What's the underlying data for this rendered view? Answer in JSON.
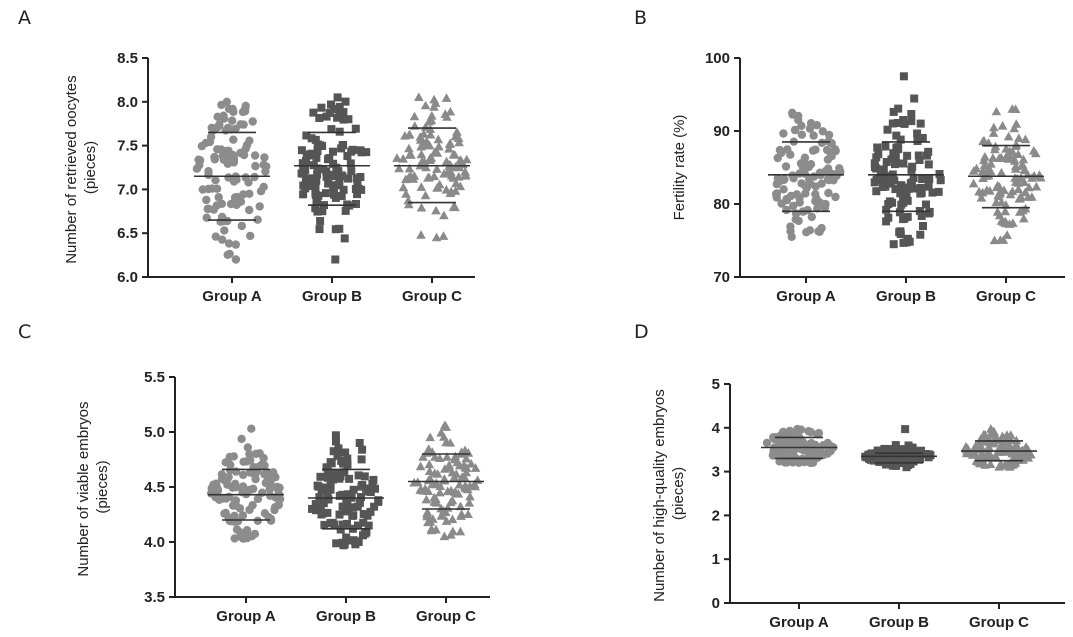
{
  "chart_data": [
    {
      "panel": "A",
      "type": "scatter",
      "ylabel": [
        "Number of retrieved oocytes",
        "(pieces)"
      ],
      "ylim": [
        6.0,
        8.5
      ],
      "yticks": [
        "6.0",
        "6.5",
        "7.0",
        "7.5",
        "8.0",
        "8.5"
      ],
      "categories": [
        "Group A",
        "Group B",
        "Group C"
      ],
      "marker_colors": [
        "#8c8c8c",
        "#555555",
        "#8a8a8a"
      ],
      "markers": [
        "circle",
        "square",
        "triangle"
      ],
      "series": [
        {
          "category": "Group A",
          "mean": 7.15,
          "sd_low": 6.65,
          "sd_high": 7.65,
          "min": 6.2,
          "max": 8.0,
          "n": 110
        },
        {
          "category": "Group B",
          "mean": 7.27,
          "sd_low": 6.82,
          "sd_high": 7.65,
          "min": 6.2,
          "max": 8.05,
          "n": 110
        },
        {
          "category": "Group C",
          "mean": 7.27,
          "sd_low": 6.85,
          "sd_high": 7.7,
          "min": 6.45,
          "max": 8.05,
          "n": 110
        }
      ]
    },
    {
      "panel": "B",
      "type": "scatter",
      "ylabel": [
        "Fertility rate (%)"
      ],
      "ylim": [
        70,
        100
      ],
      "yticks": [
        "70",
        "80",
        "90",
        "100"
      ],
      "categories": [
        "Group A",
        "Group B",
        "Group C"
      ],
      "marker_colors": [
        "#8c8c8c",
        "#555555",
        "#8a8a8a"
      ],
      "markers": [
        "circle",
        "square",
        "triangle"
      ],
      "series": [
        {
          "category": "Group A",
          "mean": 84.0,
          "sd_low": 79.0,
          "sd_high": 88.5,
          "min": 75.5,
          "max": 92.5,
          "n": 110
        },
        {
          "category": "Group B",
          "mean": 84.0,
          "sd_low": 79.0,
          "sd_high": 88.5,
          "min": 74.5,
          "max": 97.5,
          "n": 110
        },
        {
          "category": "Group C",
          "mean": 83.8,
          "sd_low": 79.5,
          "sd_high": 88.0,
          "min": 75.0,
          "max": 93.0,
          "n": 110
        }
      ]
    },
    {
      "panel": "C",
      "type": "scatter",
      "ylabel": [
        "Number of viable embryos",
        "(pieces)"
      ],
      "ylim": [
        3.5,
        5.5
      ],
      "yticks": [
        "3.5",
        "4.0",
        "4.5",
        "5.0",
        "5.5"
      ],
      "categories": [
        "Group A",
        "Group B",
        "Group C"
      ],
      "marker_colors": [
        "#8c8c8c",
        "#555555",
        "#8a8a8a"
      ],
      "markers": [
        "circle",
        "square",
        "triangle"
      ],
      "series": [
        {
          "category": "Group A",
          "mean": 4.43,
          "sd_low": 4.2,
          "sd_high": 4.66,
          "min": 4.03,
          "max": 5.03,
          "n": 110
        },
        {
          "category": "Group B",
          "mean": 4.4,
          "sd_low": 4.12,
          "sd_high": 4.66,
          "min": 3.97,
          "max": 4.97,
          "n": 110
        },
        {
          "category": "Group C",
          "mean": 4.55,
          "sd_low": 4.3,
          "sd_high": 4.8,
          "min": 4.05,
          "max": 5.06,
          "n": 110
        }
      ]
    },
    {
      "panel": "D",
      "type": "scatter",
      "ylabel": [
        "Number of high-quality embryos",
        "(pieces)"
      ],
      "ylim": [
        0,
        5
      ],
      "yticks": [
        "0",
        "1",
        "2",
        "3",
        "4",
        "5"
      ],
      "categories": [
        "Group A",
        "Group B",
        "Group C"
      ],
      "marker_colors": [
        "#8c8c8c",
        "#555555",
        "#8a8a8a"
      ],
      "markers": [
        "circle",
        "square",
        "triangle"
      ],
      "series": [
        {
          "category": "Group A",
          "mean": 3.55,
          "sd_low": 3.3,
          "sd_high": 3.78,
          "min": 3.2,
          "max": 3.97,
          "n": 110
        },
        {
          "category": "Group B",
          "mean": 3.35,
          "sd_low": 3.2,
          "sd_high": 3.42,
          "min": 3.1,
          "max": 3.97,
          "n": 110
        },
        {
          "category": "Group C",
          "mean": 3.47,
          "sd_low": 3.25,
          "sd_high": 3.7,
          "min": 3.1,
          "max": 3.97,
          "n": 110
        }
      ]
    }
  ]
}
